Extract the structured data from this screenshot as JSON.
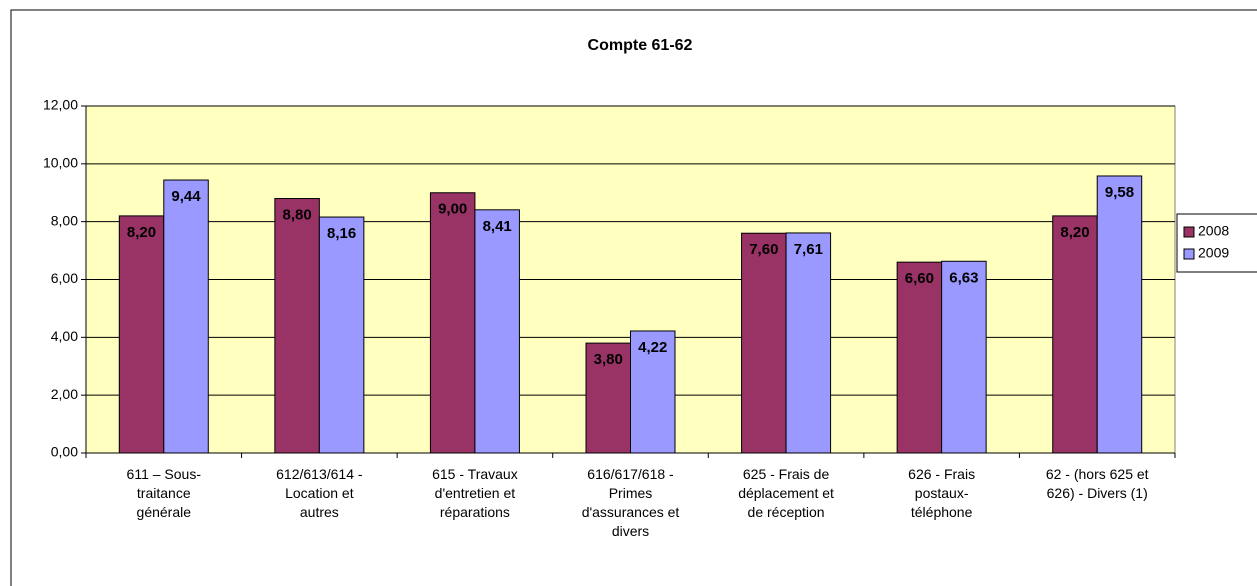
{
  "chart_data": {
    "type": "bar",
    "title": "Compte 61-62",
    "categories": [
      "611 – Sous-\ntraitance\ngénérale",
      "612/613/614 -\nLocation et\nautres",
      "615 - Travaux\nd'entretien et\nréparations",
      "616/617/618 -\nPrimes\nd'assurances et\ndivers",
      "625 - Frais de\ndéplacement et\nde réception",
      "626 - Frais\npostaux-\ntéléphone",
      "62 - (hors 625 et\n626) - Divers (1)"
    ],
    "series": [
      {
        "name": "2008",
        "color": "#993366",
        "values": [
          8.2,
          8.8,
          9.0,
          3.8,
          7.6,
          6.6,
          8.2
        ],
        "value_labels": [
          "8,20",
          "8,80",
          "9,00",
          "3,80",
          "7,60",
          "6,60",
          "8,20"
        ]
      },
      {
        "name": "2009",
        "color": "#9999ff",
        "values": [
          9.44,
          8.16,
          8.41,
          4.22,
          7.61,
          6.63,
          9.58
        ],
        "value_labels": [
          "9,44",
          "8,16",
          "8,41",
          "4,22",
          "7,61",
          "6,63",
          "9,58"
        ]
      }
    ],
    "ylim": [
      0,
      12
    ],
    "yticks": [
      {
        "value": 0,
        "label": "0,00"
      },
      {
        "value": 2,
        "label": "2,00"
      },
      {
        "value": 4,
        "label": "4,00"
      },
      {
        "value": 6,
        "label": "6,00"
      },
      {
        "value": 8,
        "label": "8,00"
      },
      {
        "value": 10,
        "label": "10,00"
      },
      {
        "value": 12,
        "label": "12,00"
      }
    ],
    "grid": true,
    "legend": "right"
  }
}
